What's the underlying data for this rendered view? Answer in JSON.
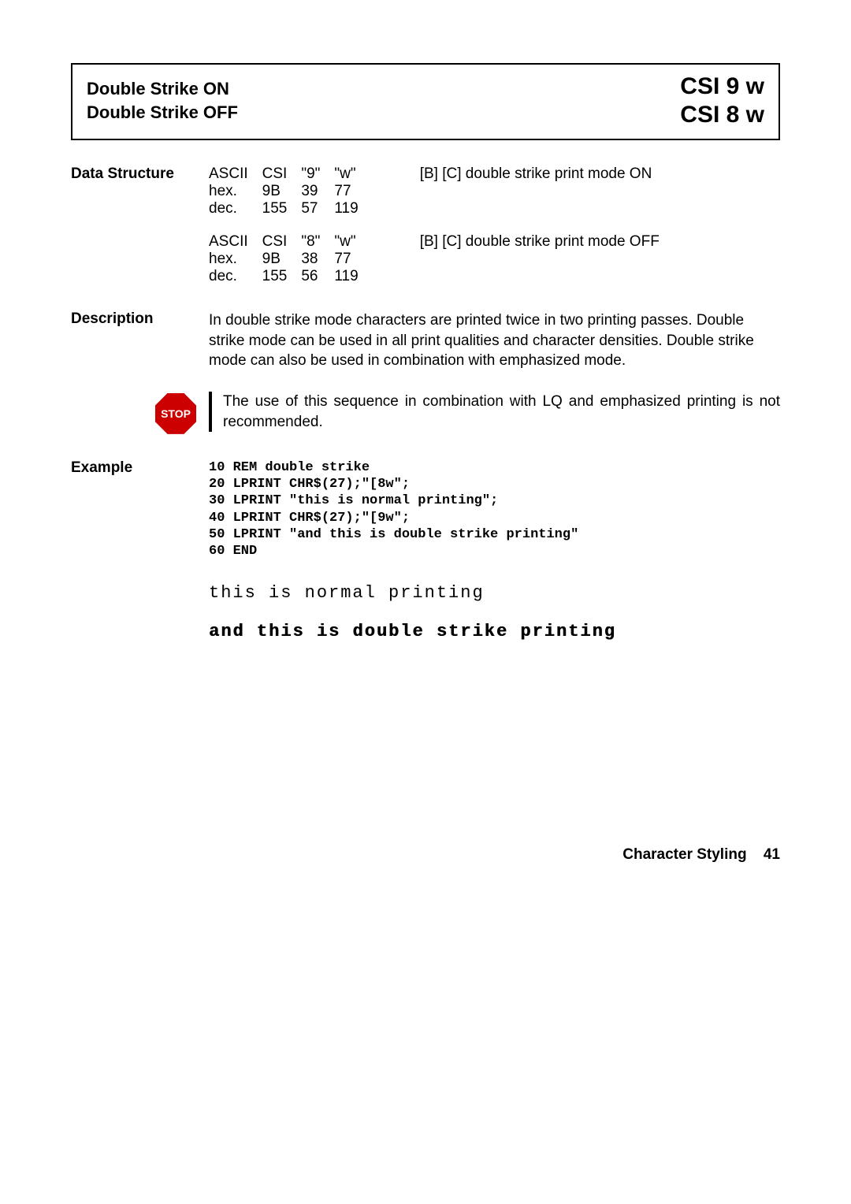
{
  "header": {
    "title_on": "Double Strike ON",
    "title_off": "Double Strike OFF",
    "code_on": "CSI 9 w",
    "code_off": "CSI 8 w"
  },
  "sections": {
    "data_structure_label": "Data Structure",
    "description_label": "Description",
    "example_label": "Example"
  },
  "ds_on": {
    "r1": {
      "c0": "ASCII",
      "c1": "CSI",
      "c2": "\"9\"",
      "c3": "\"w\"",
      "note": "[B] [C]  double strike print mode ON"
    },
    "r2": {
      "c0": "hex.",
      "c1": "9B",
      "c2": "39",
      "c3": "77"
    },
    "r3": {
      "c0": "dec.",
      "c1": "155",
      "c2": "57",
      "c3": "119"
    }
  },
  "ds_off": {
    "r1": {
      "c0": "ASCII",
      "c1": "CSI",
      "c2": "\"8\"",
      "c3": "\"w\"",
      "note": "[B] [C]  double strike print mode OFF"
    },
    "r2": {
      "c0": "hex.",
      "c1": "9B",
      "c2": "38",
      "c3": "77"
    },
    "r3": {
      "c0": "dec.",
      "c1": "155",
      "c2": "56",
      "c3": "119"
    }
  },
  "description_text": "In double strike mode characters are printed twice in two printing passes. Double strike mode can be used in all print qualities and character densities. Double strike mode can also be used in combination with emphasized mode.",
  "stop": {
    "label": "STOP",
    "text": "The use of this sequence in combination with LQ and emphasized printing is not recommended."
  },
  "example_code": "10 REM double strike\n20 LPRINT CHR$(27);\"[8w\";\n30 LPRINT \"this is normal printing\";\n40 LPRINT CHR$(27);\"[9w\";\n50 LPRINT \"and this is double strike printing\"\n60 END",
  "output": {
    "line1": "this is normal printing",
    "line2": "and this is double strike printing"
  },
  "footer": {
    "section": "Character Styling",
    "page": "41"
  },
  "colors": {
    "stop_bg": "#cc0000",
    "border": "#000000",
    "text": "#000000",
    "background": "#ffffff"
  }
}
